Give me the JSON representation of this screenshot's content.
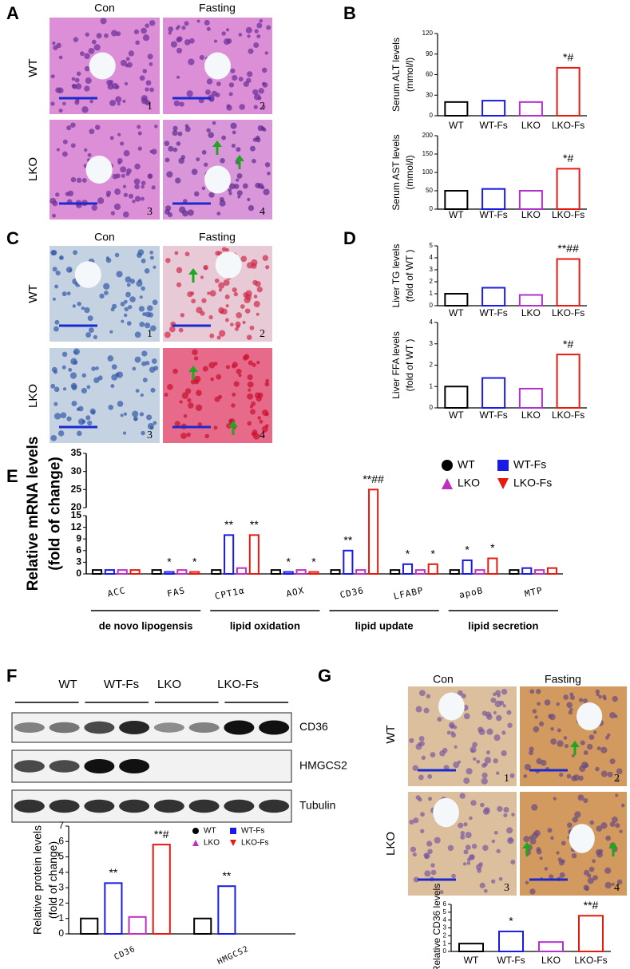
{
  "figure": {
    "panel_labels": [
      "A",
      "B",
      "C",
      "D",
      "E",
      "F",
      "G"
    ],
    "A": {
      "columns": [
        "Con",
        "Fasting"
      ],
      "rows": [
        "WT",
        "LKO"
      ],
      "numbers": [
        "1",
        "2",
        "3",
        "4"
      ]
    },
    "C": {
      "columns": [
        "Con",
        "Fasting"
      ],
      "rows": [
        "WT",
        "LKO"
      ],
      "numbers": [
        "1",
        "2",
        "3",
        "4"
      ]
    },
    "F": {
      "lanes": [
        "WT",
        "WT-Fs",
        "LKO",
        "LKO-Fs"
      ],
      "blots": [
        "CD36",
        "HMGCS2",
        "Tubulin"
      ]
    },
    "G": {
      "columns": [
        "Con",
        "Fasting"
      ],
      "rows": [
        "WT",
        "LKO"
      ],
      "numbers": [
        "1",
        "2",
        "3",
        "4"
      ]
    }
  },
  "chart_data": [
    {
      "type": "bar",
      "ylabel": [
        "Serum ALT levels",
        "(mmol/l)"
      ],
      "categories": [
        "WT",
        "WT-Fs",
        "LKO",
        "LKO-Fs"
      ],
      "values": [
        20,
        22,
        20,
        70
      ],
      "colors": [
        "#000000",
        "#1a1ae6",
        "#b030d0",
        "#e8190f"
      ],
      "significance": [
        null,
        null,
        null,
        "*#"
      ],
      "ylim": [
        0,
        120
      ],
      "yticks": [
        0,
        30,
        60,
        90,
        120
      ]
    },
    {
      "type": "bar",
      "ylabel": [
        "Serum AST levels",
        "(mmol/l)"
      ],
      "categories": [
        "WT",
        "WT-Fs",
        "LKO",
        "LKO-Fs"
      ],
      "values": [
        50,
        55,
        50,
        110
      ],
      "colors": [
        "#000000",
        "#1a1ae6",
        "#b030d0",
        "#e8190f"
      ],
      "significance": [
        null,
        null,
        null,
        "*#"
      ],
      "ylim": [
        0,
        200
      ],
      "yticks": [
        0,
        50,
        100,
        150,
        200
      ]
    },
    {
      "type": "bar",
      "ylabel": [
        "Liver TG levels",
        "(fold of WT )"
      ],
      "categories": [
        "WT",
        "WT-Fs",
        "LKO",
        "LKO-Fs"
      ],
      "values": [
        1,
        1.5,
        0.9,
        3.9
      ],
      "colors": [
        "#000000",
        "#1a1ae6",
        "#b030d0",
        "#e8190f"
      ],
      "significance": [
        null,
        null,
        null,
        "**##"
      ],
      "ylim": [
        0,
        5
      ],
      "yticks": [
        0,
        1,
        2,
        3,
        4,
        5
      ]
    },
    {
      "type": "bar",
      "ylabel": [
        "Liver FFA levels",
        "(fold of WT )"
      ],
      "categories": [
        "WT",
        "WT-Fs",
        "LKO",
        "LKO-Fs"
      ],
      "values": [
        1,
        1.4,
        0.9,
        2.5
      ],
      "colors": [
        "#000000",
        "#1a1ae6",
        "#b030d0",
        "#e8190f"
      ],
      "significance": [
        null,
        null,
        null,
        "*#"
      ],
      "ylim": [
        0,
        4
      ],
      "yticks": [
        0,
        1,
        2,
        3,
        4
      ]
    },
    {
      "type": "bar",
      "ylabel": [
        "Relative mRNA levels",
        "(fold of change)"
      ],
      "categories": [
        "ACC",
        "FAS",
        "CPT1α",
        "AOX",
        "CD36",
        "LFABP",
        "apoB",
        "MTP"
      ],
      "group_labels": [
        "de novo lipogensis",
        "lipid oxidation",
        "lipid update",
        "lipid secretion"
      ],
      "series": [
        {
          "name": "WT",
          "color": "#000000",
          "values": [
            1,
            1,
            1,
            1,
            1,
            1,
            1,
            1
          ],
          "significance": [
            null,
            null,
            null,
            null,
            null,
            null,
            null,
            null
          ]
        },
        {
          "name": "WT-Fs",
          "color": "#1a1ae6",
          "values": [
            1,
            0.5,
            10,
            0.5,
            6,
            2.5,
            3.5,
            1.5
          ],
          "significance": [
            null,
            "*",
            "**",
            "*",
            "**",
            "*",
            "*",
            null
          ]
        },
        {
          "name": "LKO",
          "color": "#c030c0",
          "values": [
            1,
            1,
            1.5,
            1,
            1,
            1,
            1,
            1
          ],
          "significance": [
            null,
            null,
            null,
            null,
            null,
            null,
            null,
            null
          ]
        },
        {
          "name": "LKO-Fs",
          "color": "#e8190f",
          "values": [
            1,
            0.5,
            10,
            0.5,
            25,
            2.5,
            4,
            1.5
          ],
          "significance": [
            null,
            "*",
            "**",
            "*",
            "**##",
            "*",
            "*",
            null
          ]
        }
      ],
      "ylim": [
        0,
        35
      ],
      "ybreak": [
        15,
        20
      ],
      "yticks": [
        0,
        3,
        6,
        9,
        12,
        15,
        20,
        25,
        30,
        35
      ],
      "legend": true
    },
    {
      "type": "bar",
      "ylabel": [
        "Relative protein levels",
        "(fold of change)"
      ],
      "categories": [
        "CD36",
        "HMGCS2"
      ],
      "series": [
        {
          "name": "WT",
          "color": "#000000",
          "values": [
            1,
            1
          ],
          "significance": [
            null,
            null
          ]
        },
        {
          "name": "WT-Fs",
          "color": "#1a1ae6",
          "values": [
            3.3,
            3.1
          ],
          "significance": [
            "**",
            "**"
          ]
        },
        {
          "name": "LKO",
          "color": "#c030c0",
          "values": [
            1.1,
            null
          ],
          "significance": [
            null,
            null
          ]
        },
        {
          "name": "LKO-Fs",
          "color": "#e8190f",
          "values": [
            5.8,
            null
          ],
          "significance": [
            "**#",
            null
          ]
        }
      ],
      "ylim": [
        0,
        7
      ],
      "yticks": [
        0,
        1,
        2,
        3,
        4,
        5,
        6,
        7
      ],
      "legend": true
    },
    {
      "type": "bar",
      "ylabel": [
        "Relative CD36 levels"
      ],
      "categories": [
        "WT",
        "WT-Fs",
        "LKO",
        "LKO-Fs"
      ],
      "values": [
        1,
        2.55,
        1.2,
        4.55
      ],
      "colors": [
        "#000000",
        "#1a1ae6",
        "#b030d0",
        "#e8190f"
      ],
      "significance": [
        null,
        "*",
        null,
        "**#"
      ],
      "ylim": [
        0,
        6
      ],
      "yticks": [
        0,
        1,
        2,
        3,
        4,
        5,
        6
      ]
    }
  ]
}
